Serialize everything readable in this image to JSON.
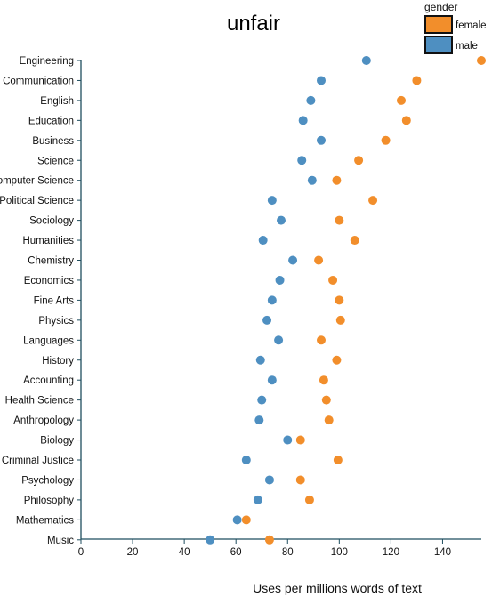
{
  "chart_data": {
    "type": "scatter",
    "title": "unfair",
    "xlabel": "Uses per millions words of text",
    "ylabel": "",
    "xlim": [
      0,
      155
    ],
    "xticks": [
      0,
      20,
      40,
      60,
      80,
      100,
      120,
      140
    ],
    "grid": false,
    "legend": {
      "title": "gender",
      "placement": "top-right",
      "entries": [
        "female",
        "male"
      ]
    },
    "categories": [
      "Engineering",
      "Communication",
      "English",
      "Education",
      "Business",
      "Science",
      "Computer Science",
      "Political Science",
      "Sociology",
      "Humanities",
      "Chemistry",
      "Economics",
      "Fine Arts",
      "Physics",
      "Languages",
      "History",
      "Accounting",
      "Health Science",
      "Anthropology",
      "Biology",
      "Criminal Justice",
      "Psychology",
      "Philosophy",
      "Mathematics",
      "Music"
    ],
    "series": [
      {
        "name": "female",
        "color": "#f28e2b",
        "values": [
          155,
          130,
          124,
          126,
          118,
          107.5,
          99,
          113,
          100,
          106,
          92,
          97.5,
          100,
          100.5,
          93,
          99,
          94,
          95,
          96,
          85,
          99.5,
          85,
          88.5,
          64,
          73
        ]
      },
      {
        "name": "male",
        "color": "#4e8fc1",
        "values": [
          110.5,
          93,
          89,
          86,
          93,
          85.5,
          89.5,
          74,
          77.5,
          70.5,
          82,
          77,
          74,
          72,
          76.5,
          69.5,
          74,
          70,
          69,
          80,
          64,
          73,
          68.5,
          60.5,
          50
        ]
      }
    ]
  }
}
